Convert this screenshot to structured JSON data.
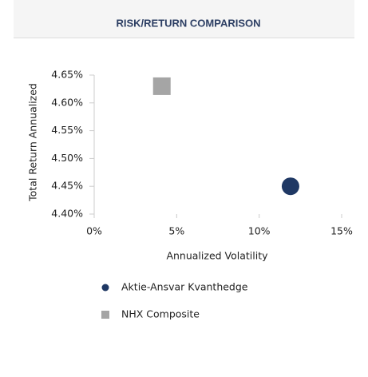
{
  "chart_data": {
    "type": "scatter",
    "title": "RISK/RETURN COMPARISON",
    "x_label": "Annualized Volatility",
    "y_label": "Total Return Annualized",
    "xlim": [
      0,
      15
    ],
    "xticks": [
      {
        "value": 0,
        "label": "0%"
      },
      {
        "value": 5,
        "label": "5%"
      },
      {
        "value": 10,
        "label": "10%"
      },
      {
        "value": 15,
        "label": "15%"
      }
    ],
    "ylim": [
      4.4,
      4.65
    ],
    "yticks": [
      {
        "value": 4.65,
        "label": "4.65%"
      },
      {
        "value": 4.6,
        "label": "4.60%"
      },
      {
        "value": 4.55,
        "label": "4.55%"
      },
      {
        "value": 4.5,
        "label": "4.50%"
      },
      {
        "value": 4.45,
        "label": "4.45%"
      },
      {
        "value": 4.4,
        "label": "4.40%"
      }
    ],
    "series": [
      {
        "name": "Aktie-Ansvar Kvanthedge",
        "color": "#1f3864",
        "marker": "circle",
        "x": [
          11.9
        ],
        "values": [
          4.45
        ]
      },
      {
        "name": "NHX Composite",
        "color": "#a5a5a5",
        "marker": "square",
        "x": [
          4.1
        ],
        "values": [
          4.63
        ]
      }
    ]
  }
}
